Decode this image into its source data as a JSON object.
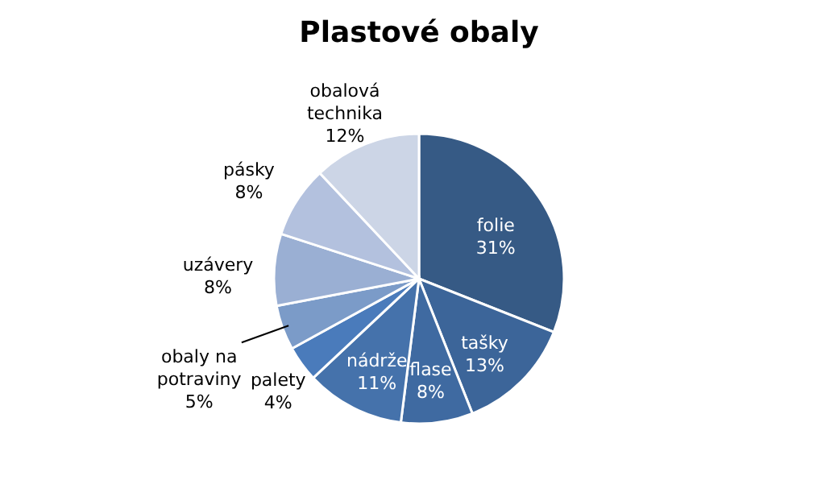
{
  "chart_data": {
    "type": "pie",
    "title": "Plastové obaly",
    "categories": [
      "folie",
      "tašky",
      "flase",
      "nádrže",
      "palety",
      "obaly na potraviny",
      "uzávery",
      "pásky",
      "obalová technika"
    ],
    "values": [
      31,
      13,
      8,
      11,
      4,
      5,
      8,
      8,
      12
    ],
    "value_labels": [
      "31%",
      "13%",
      "8%",
      "11%",
      "4%",
      "5%",
      "8%",
      "8%",
      "12%"
    ],
    "colors": [
      "#365a85",
      "#3c6599",
      "#3f6aa1",
      "#4572ab",
      "#4a7bbb",
      "#7b9bc8",
      "#9aafd3",
      "#b3c1de",
      "#ccd5e6"
    ],
    "legend": false
  }
}
